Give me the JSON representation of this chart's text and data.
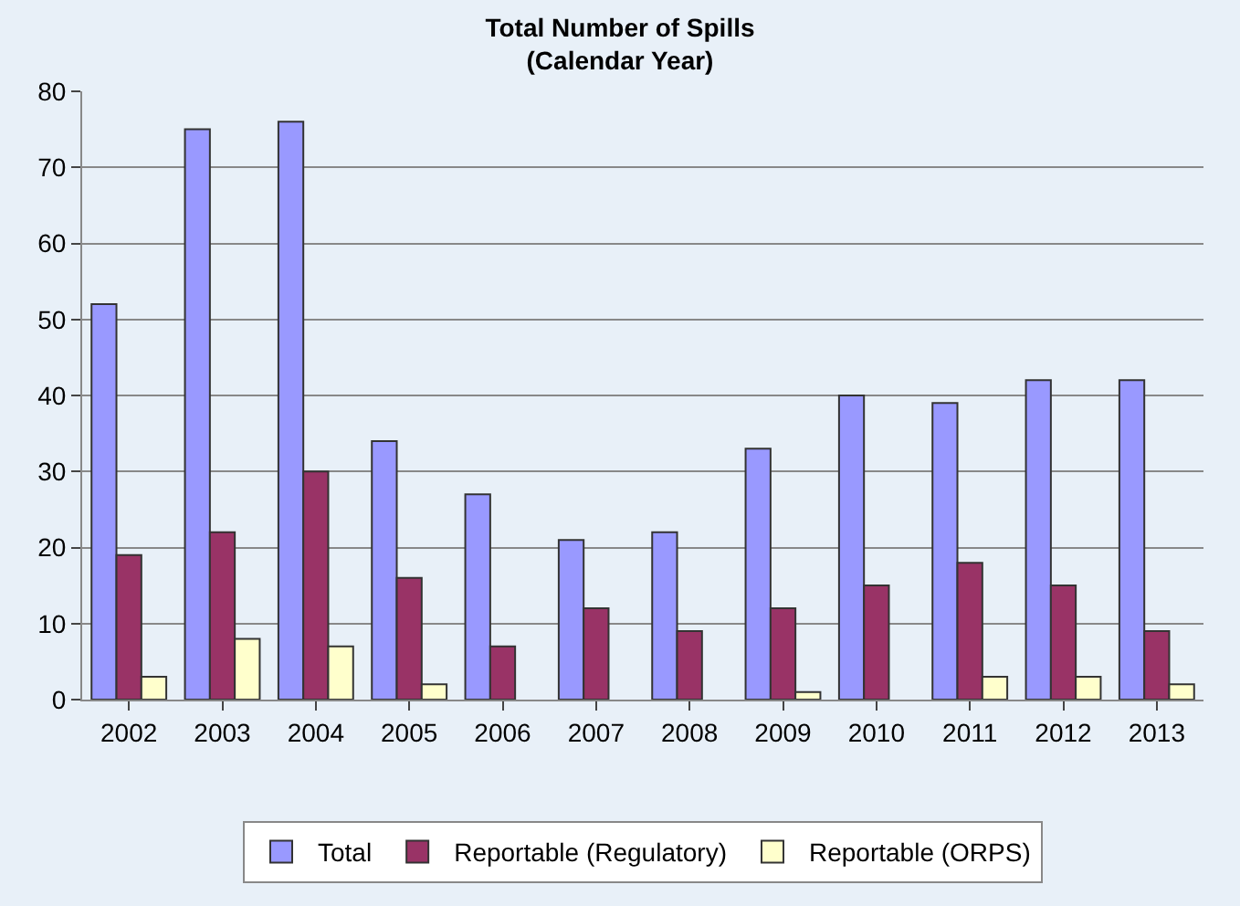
{
  "chart_data": {
    "type": "bar",
    "title": "Total Number of Spills",
    "subtitle": "(Calendar Year)",
    "categories": [
      "2002",
      "2003",
      "2004",
      "2005",
      "2006",
      "2007",
      "2008",
      "2009",
      "2010",
      "2011",
      "2012",
      "2013"
    ],
    "series": [
      {
        "name": "Total",
        "color": "#9999ff",
        "values": [
          52,
          75,
          76,
          34,
          27,
          21,
          22,
          33,
          40,
          39,
          42,
          42
        ]
      },
      {
        "name": "Reportable (Regulatory)",
        "color": "#993366",
        "values": [
          19,
          22,
          30,
          16,
          7,
          12,
          9,
          12,
          15,
          18,
          15,
          9
        ]
      },
      {
        "name": "Reportable (ORPS)",
        "color": "#ffffcc",
        "values": [
          3,
          8,
          7,
          2,
          null,
          null,
          null,
          1,
          null,
          3,
          3,
          2
        ]
      }
    ],
    "ylim": [
      0,
      80
    ],
    "yticks": [
      0,
      10,
      20,
      30,
      40,
      50,
      60,
      70,
      80
    ],
    "grid": "y",
    "legend": "bottom"
  }
}
